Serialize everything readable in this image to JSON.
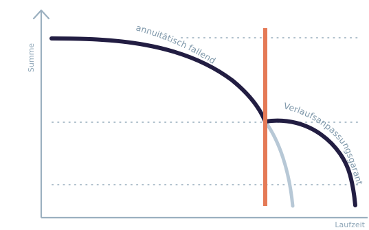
{
  "diagram": {
    "y_axis_label": "Summe",
    "x_axis_label": "Laufzeit",
    "curve_labels": {
      "falling": "annuitätisch fallend",
      "guarantee": "Verlaufsanpassungsgarantie"
    },
    "colors": {
      "axis": "#9bb0c0",
      "main_curve": "#221d42",
      "guarantee_curve": "#221d42",
      "alt_curve": "#b7c8d6",
      "marker_line": "#e57a56",
      "grid": "#aebfcb",
      "text": "#7f98aa"
    }
  }
}
